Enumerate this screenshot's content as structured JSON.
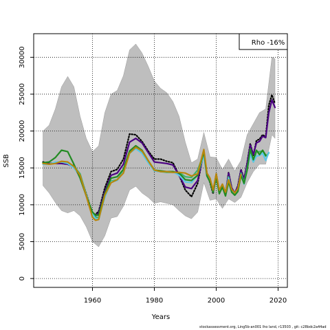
{
  "chart_data": {
    "type": "line",
    "title": "",
    "xlabel": "Years",
    "ylabel": "SSB",
    "xlim": [
      1941,
      2023
    ],
    "ylim": [
      -1200,
      33200
    ],
    "x_ticks": [
      1960,
      1980,
      2000,
      2020
    ],
    "y_ticks": [
      0,
      5000,
      10000,
      15000,
      20000,
      25000,
      30000
    ],
    "grid": true,
    "legend_text": "Rho -16%",
    "legend_position": "top-right",
    "band": {
      "color": "#bebebe",
      "x": [
        1944,
        1946,
        1948,
        1950,
        1952,
        1954,
        1956,
        1958,
        1960,
        1962,
        1964,
        1966,
        1968,
        1970,
        1972,
        1974,
        1976,
        1978,
        1980,
        1982,
        1984,
        1986,
        1988,
        1990,
        1992,
        1994,
        1996,
        1998,
        2000,
        2002,
        2004,
        2006,
        2008,
        2010,
        2012,
        2014,
        2016,
        2018,
        2019
      ],
      "upper": [
        20000,
        20800,
        23000,
        26000,
        27400,
        26000,
        22000,
        19000,
        17200,
        18000,
        22500,
        25000,
        25500,
        27500,
        31000,
        31800,
        30600,
        28800,
        26800,
        25800,
        25200,
        24000,
        22000,
        18500,
        15700,
        16200,
        19800,
        16500,
        16400,
        14800,
        16200,
        14600,
        16000,
        19500,
        21000,
        22500,
        23000,
        30000,
        29800
      ],
      "lower": [
        12600,
        11600,
        10300,
        9200,
        8900,
        9200,
        8500,
        7000,
        5000,
        4300,
        5800,
        8200,
        8400,
        9800,
        12000,
        12500,
        11600,
        11000,
        10200,
        10400,
        10200,
        10000,
        9200,
        8500,
        8100,
        9000,
        13000,
        10600,
        10800,
        9500,
        10800,
        10300,
        11000,
        13000,
        14500,
        15500,
        15500,
        19500,
        19000
      ]
    },
    "x": [
      1944,
      1946,
      1948,
      1950,
      1952,
      1954,
      1956,
      1958,
      1960,
      1961,
      1962,
      1964,
      1966,
      1968,
      1970,
      1972,
      1974,
      1976,
      1978,
      1980,
      1982,
      1984,
      1986,
      1988,
      1990,
      1992,
      1994,
      1996,
      1997,
      1998,
      1999,
      2000,
      2001,
      2002,
      2003,
      2004,
      2005,
      2006,
      2007,
      2008,
      2009,
      2010,
      2011,
      2012,
      2013,
      2014,
      2015,
      2016,
      2017,
      2018,
      2019
    ],
    "series": [
      {
        "color": "#000000",
        "style": "dotted",
        "values": [
          15800,
          15600,
          15700,
          15600,
          15500,
          15300,
          14000,
          11500,
          8800,
          8700,
          9100,
          12300,
          14500,
          14800,
          16200,
          19600,
          19500,
          18600,
          17300,
          16200,
          16200,
          15900,
          15700,
          14000,
          12000,
          11100,
          12900,
          17200,
          14200,
          13000,
          11500,
          14200,
          11800,
          12600,
          11400,
          14400,
          12300,
          11500,
          12600,
          14800,
          13500,
          15700,
          18300,
          16700,
          18700,
          18900,
          19500,
          19200,
          23500,
          24900,
          23700
        ]
      },
      {
        "color": "#4b0082",
        "style": "solid",
        "values": [
          15700,
          15600,
          15600,
          15600,
          15500,
          15100,
          13800,
          11200,
          8600,
          8500,
          8900,
          11800,
          14000,
          14300,
          15500,
          18500,
          19000,
          18400,
          17100,
          15800,
          15700,
          15600,
          15400,
          14000,
          12400,
          12200,
          13300,
          17000,
          14000,
          13200,
          11700,
          13900,
          11800,
          12500,
          11500,
          14300,
          12300,
          11600,
          12500,
          14700,
          13400,
          15600,
          18100,
          16800,
          18400,
          18600,
          19300,
          19100,
          22500,
          24200,
          23200
        ]
      },
      {
        "color": "#3cb371",
        "style": "solid",
        "values": [
          15600,
          15500,
          15700,
          15800,
          15700,
          15200,
          14200,
          11400,
          8800,
          8300,
          8300,
          11200,
          13200,
          13400,
          14500,
          17200,
          17800,
          17200,
          15800,
          14600,
          14500,
          14400,
          14400,
          14400,
          13800,
          13700,
          14700,
          17000,
          14100,
          13400,
          11900,
          13900,
          11900,
          12500,
          11600,
          13800,
          12000,
          11500,
          12200,
          14300,
          13000,
          15000,
          17200,
          15800,
          17200,
          17200,
          17300,
          16600,
          17000,
          null,
          null
        ]
      },
      {
        "color": "#5bc8e8",
        "style": "solid",
        "values": [
          15500,
          15500,
          15800,
          15800,
          15600,
          15000,
          13900,
          11300,
          8700,
          8100,
          8000,
          11000,
          13100,
          13300,
          14400,
          17000,
          17600,
          17000,
          15700,
          14600,
          14500,
          14500,
          14500,
          14000,
          13100,
          13000,
          14100,
          16700,
          13900,
          13200,
          11700,
          13700,
          11700,
          12400,
          11500,
          13600,
          11800,
          11300,
          12000,
          14100,
          12800,
          14800,
          16800,
          15800,
          16600,
          16700,
          17000,
          16000,
          17100,
          null,
          null
        ]
      },
      {
        "color": "#228b22",
        "style": "solid",
        "values": [
          15700,
          15800,
          16400,
          17400,
          17200,
          15500,
          13600,
          11200,
          9000,
          8600,
          8600,
          11500,
          13600,
          13800,
          14800,
          17300,
          18000,
          17400,
          16000,
          14700,
          14600,
          14500,
          14500,
          14300,
          13400,
          13300,
          14000,
          17200,
          13900,
          13100,
          11700,
          13700,
          11500,
          12400,
          11200,
          13100,
          11700,
          11300,
          11800,
          14000,
          12900,
          14700,
          17600,
          16100,
          17400,
          16800,
          17400,
          16700,
          null,
          null,
          null
        ]
      },
      {
        "color": "#b8860b",
        "style": "solid",
        "values": [
          15600,
          15500,
          15600,
          15900,
          15800,
          15200,
          14000,
          11200,
          8300,
          7900,
          8000,
          11300,
          13000,
          13400,
          14300,
          17000,
          17800,
          17300,
          16000,
          14700,
          14500,
          14500,
          14400,
          14400,
          14300,
          13900,
          14200,
          17500,
          14300,
          13600,
          12000,
          14200,
          12000,
          12800,
          11700,
          13400,
          12100,
          11600,
          12200,
          14100,
          null,
          null,
          null,
          null,
          null,
          null,
          null,
          null,
          null,
          null,
          null
        ]
      }
    ]
  },
  "footer_text": "stockassessment.org,  Ling5b-an001  lho  land,  r13503 ,  git:  c28bdc2a44ad"
}
